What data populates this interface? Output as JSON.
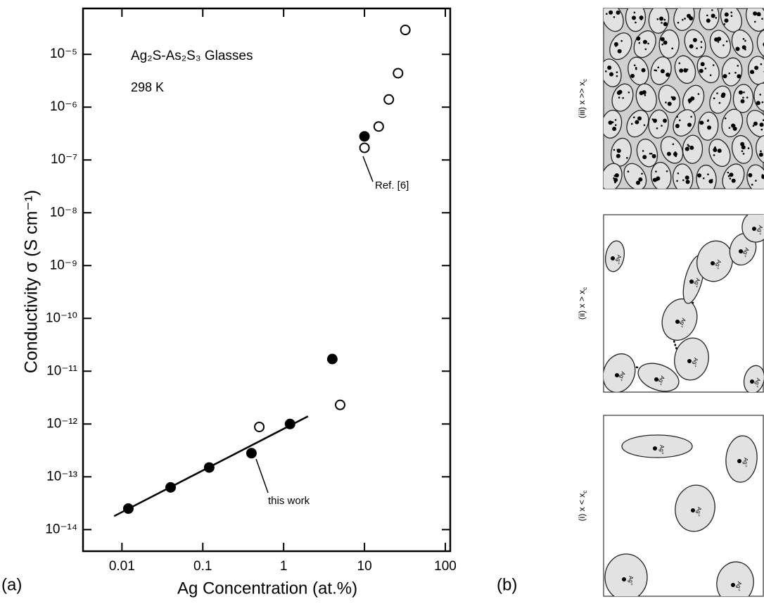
{
  "chart_data": {
    "type": "scatter",
    "panel_label": "(a)",
    "xlabel": "Ag Concentration (at.%)",
    "ylabel": "Conductivity  σ  (S cm⁻¹)",
    "log_x": true,
    "log_y": true,
    "xlim": [
      0.0033,
      115
    ],
    "ylim": [
      3.9e-15,
      7.4e-05
    ],
    "xticks": [
      0.01,
      0.1,
      1,
      10,
      100
    ],
    "yticks": [
      {
        "value": 1e-14,
        "label": "10⁻¹⁴"
      },
      {
        "value": 1e-13,
        "label": "10⁻¹³"
      },
      {
        "value": 1e-12,
        "label": "10⁻¹²"
      },
      {
        "value": 1e-11,
        "label": "10⁻¹¹"
      },
      {
        "value": 1e-10,
        "label": "10⁻¹⁰"
      },
      {
        "value": 1e-09,
        "label": "10⁻⁹"
      },
      {
        "value": 1e-08,
        "label": "10⁻⁸"
      },
      {
        "value": 1e-07,
        "label": "10⁻⁷"
      },
      {
        "value": 1e-06,
        "label": "10⁻⁶"
      },
      {
        "value": 1e-05,
        "label": "10⁻⁵"
      }
    ],
    "series": [
      {
        "marker": "filled",
        "color": "#000000",
        "x": [
          0.012,
          0.04,
          0.12,
          0.4,
          1.2,
          4,
          10
        ],
        "values": [
          2.5e-14,
          6.3e-14,
          1.5e-13,
          2.8e-13,
          1e-12,
          1.7e-11,
          2.8e-07
        ]
      },
      {
        "marker": "open",
        "color": "#000000",
        "x": [
          0.5,
          5,
          10,
          15,
          20,
          26,
          32
        ],
        "values": [
          8.8e-13,
          2.3e-12,
          1.7e-07,
          4.3e-07,
          1.4e-06,
          4.4e-06,
          2.9e-05
        ]
      },
      {
        "marker": "line",
        "color": "#000000",
        "x": [
          0.008,
          2
        ],
        "values": [
          1.8e-14,
          1.4e-12
        ]
      }
    ],
    "annotations": {
      "title": "Ag₂S-As₂S₃ Glasses",
      "temperature": "298 K",
      "ref": "Ref. [6]",
      "this_work": "this work"
    }
  },
  "panel_b": {
    "label": "(b)",
    "ion_label": "Ag⁺",
    "panels": [
      {
        "text": "(iii) x >> x",
        "sub": "c"
      },
      {
        "text": "(ii) x > x",
        "sub": "c"
      },
      {
        "text": "(i) x < x",
        "sub": "c"
      }
    ]
  }
}
